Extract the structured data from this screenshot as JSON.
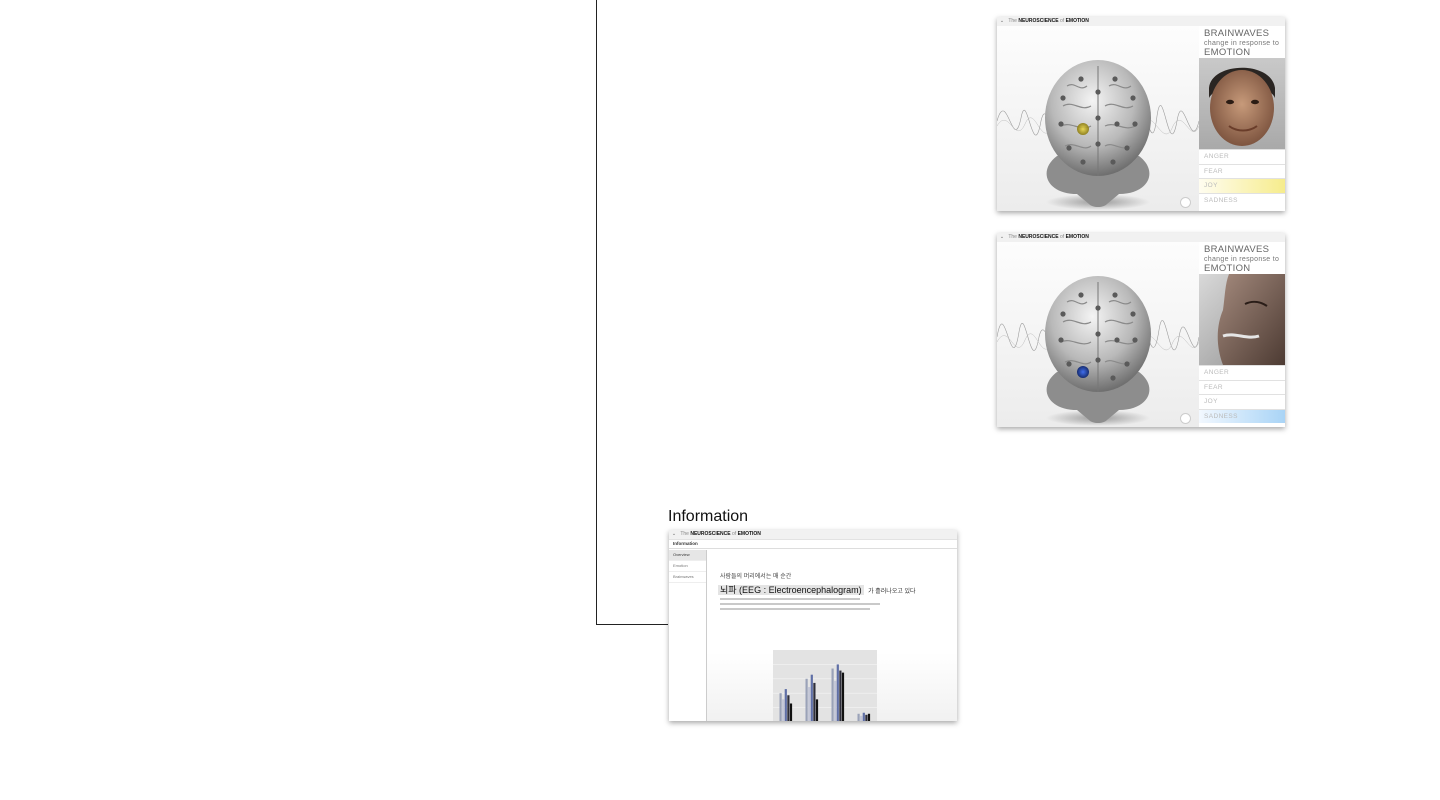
{
  "emotion_screens": [
    {
      "header": {
        "chevron_icon": "chevron-down-icon",
        "the": "The",
        "neuroscience": "NEUROSCIENCE",
        "of": "of",
        "emotion": "EMOTION"
      },
      "heading": {
        "line1": "BRAINWAVES",
        "line2": "change in response to",
        "line3": "EMOTION"
      },
      "photo": "smiling-boy",
      "emotions": [
        "ANGER",
        "FEAR",
        "JOY",
        "SADNESS"
      ],
      "selected_emotion": "JOY",
      "highlight_color": "#f6ec8c",
      "electrode_color": "#d8c23a"
    },
    {
      "header": {
        "chevron_icon": "chevron-down-icon",
        "the": "The",
        "neuroscience": "NEUROSCIENCE",
        "of": "of",
        "emotion": "EMOTION"
      },
      "heading": {
        "line1": "BRAINWAVES",
        "line2": "change in response to",
        "line3": "EMOTION"
      },
      "photo": "sad-face-closeup",
      "emotions": [
        "ANGER",
        "FEAR",
        "JOY",
        "SADNESS"
      ],
      "selected_emotion": "SADNESS",
      "highlight_color": "#a9d4f6",
      "electrode_color": "#2a52c9"
    }
  ],
  "information": {
    "section_title": "Information",
    "header": {
      "the": "The",
      "neuroscience": "NEUROSCIENCE",
      "of": "of",
      "emotion": "EMOTION"
    },
    "sub_header": "Information",
    "nav": [
      "Overview",
      "Emotion",
      "Brainwaves"
    ],
    "active_nav": "Overview",
    "subtitle": "사람들의 머리에서는 매 순간",
    "headline": "뇌파 (EEG : Electroencephalogram)",
    "headline_tail": "가 흘러나오고 있다"
  },
  "chart_data": {
    "type": "bar",
    "categories": [
      "",
      "",
      "",
      ""
    ],
    "series": [
      {
        "values": [
          28,
          42,
          52,
          8
        ]
      },
      {
        "values": [
          22,
          34,
          40,
          6
        ]
      },
      {
        "values": [
          32,
          46,
          56,
          9
        ]
      },
      {
        "values": [
          26,
          38,
          50,
          7
        ]
      },
      {
        "values": [
          18,
          22,
          48,
          8
        ]
      }
    ],
    "ylim": [
      0,
      70
    ],
    "grid": true,
    "colors": [
      "#9aa2b8",
      "#c3c6d6",
      "#5f6fa6",
      "#2e2e3a",
      "#111111"
    ],
    "legend": "right"
  }
}
